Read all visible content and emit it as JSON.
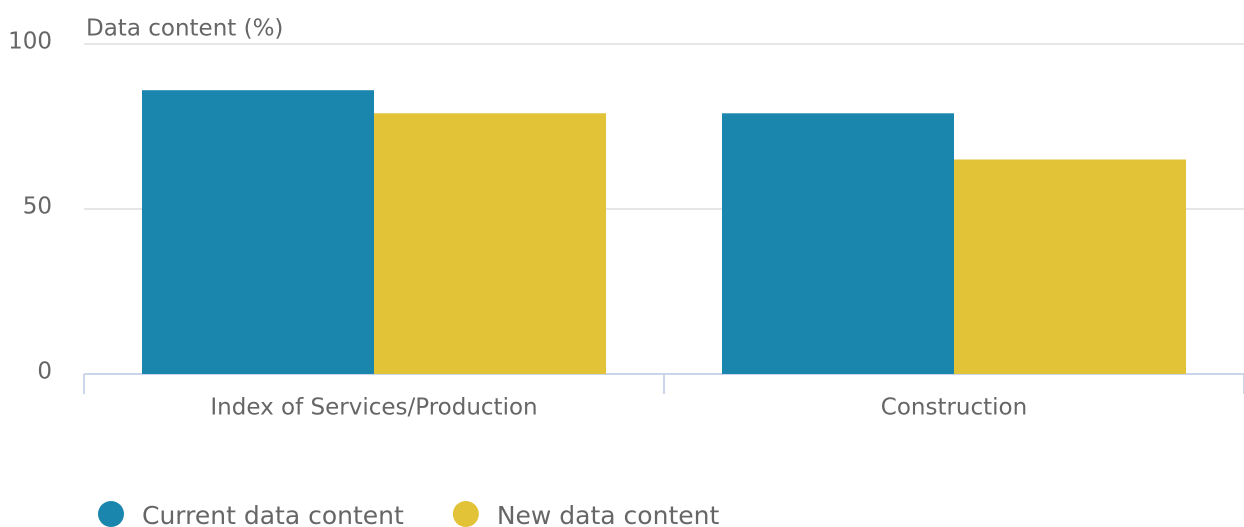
{
  "chart_data": {
    "type": "bar",
    "y_axis_label": "Data content (%)",
    "categories": [
      "Index of Services/Production",
      "Construction"
    ],
    "series": [
      {
        "name": "Current data content",
        "color": "#1a85ad",
        "values": [
          86,
          79
        ]
      },
      {
        "name": "New data content",
        "color": "#e2c236",
        "values": [
          79,
          65
        ]
      }
    ],
    "ylim": [
      0,
      100
    ],
    "yticks": [
      0,
      50,
      100
    ],
    "grid": true,
    "legend": "bottom-left"
  }
}
